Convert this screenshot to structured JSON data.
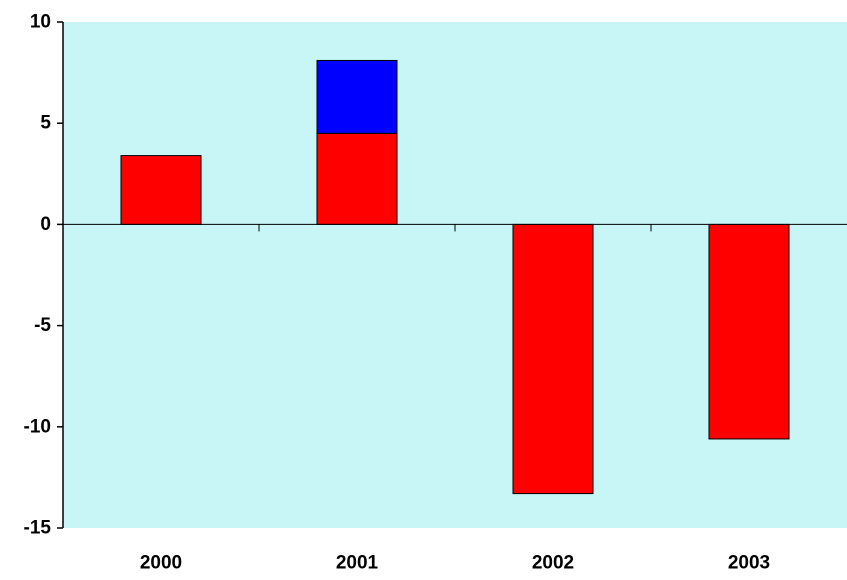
{
  "chart_data": {
    "type": "bar",
    "stacked": true,
    "categories": [
      "2000",
      "2001",
      "2002",
      "2003"
    ],
    "series": [
      {
        "color": "#ff0000",
        "values": [
          3.4,
          4.5,
          -13.3,
          -10.6
        ]
      },
      {
        "color": "#0000ff",
        "values": [
          0,
          3.6,
          0,
          0
        ]
      }
    ],
    "title": "",
    "xlabel": "",
    "ylabel": "",
    "ylim": [
      -15,
      10
    ],
    "yticks": [
      10,
      5,
      0,
      -5,
      -10,
      -15
    ],
    "ytick_labels": [
      "10",
      "5",
      "0",
      "-5",
      "-10",
      "-15"
    ],
    "grid": false,
    "legend": "none",
    "plot_background": "#c8f5f5"
  }
}
